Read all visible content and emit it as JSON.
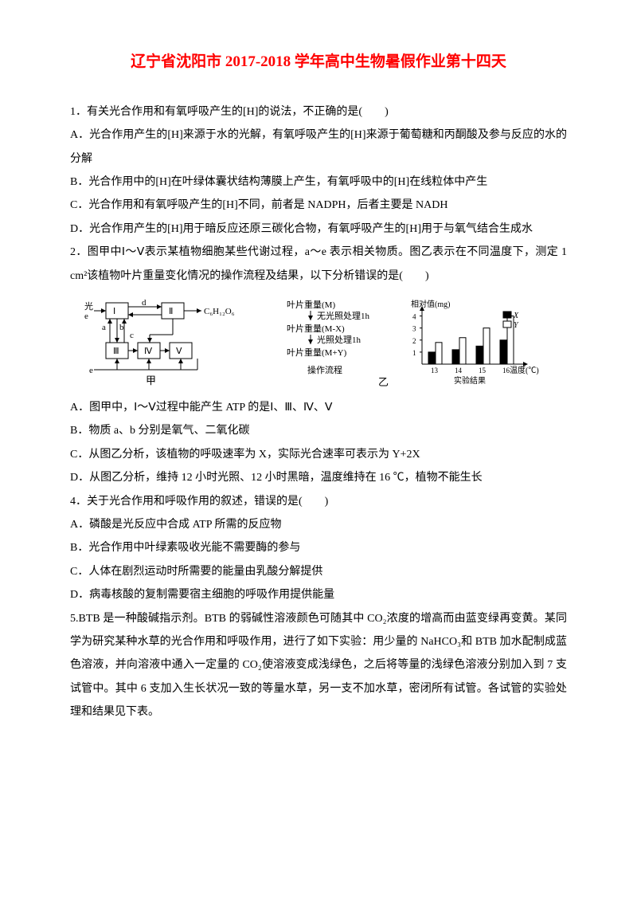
{
  "title": "辽宁省沈阳市 2017-2018 学年高中生物暑假作业第十四天",
  "questions": {
    "q1": {
      "stem": "1．有关光合作用和有氧呼吸产生的[H]的说法，不正确的是(　　)",
      "A": "A．光合作用产生的[H]来源于水的光解，有氧呼吸产生的[H]来源于葡萄糖和丙酮酸及参与反应的水的分解",
      "B": "B．光合作用中的[H]在叶绿体囊状结构薄膜上产生，有氧呼吸中的[H]在线粒体中产生",
      "C": "C．光合作用和有氧呼吸产生的[H]不同，前者是 NADPH，后者主要是 NADH",
      "D": "D．光合作用产生的[H]用于暗反应还原三碳化合物，有氧呼吸产生的[H]用于与氧气结合生成水"
    },
    "q2": {
      "stem": "2．图甲中Ⅰ～Ⅴ表示某植物细胞某些代谢过程，a～e 表示相关物质。图乙表示在不同温度下，测定 1 cm²该植物叶片重量变化情况的操作流程及结果，以下分析错误的是(　　)",
      "A": "A．图甲中，Ⅰ～Ⅴ过程中能产生 ATP 的是Ⅰ、Ⅲ、Ⅳ、Ⅴ",
      "B": "B．物质 a、b 分别是氧气、二氧化碳",
      "C": "C．从图乙分析，该植物的呼吸速率为 X，实际光合速率可表示为 Y+2X",
      "D": "D．从图乙分析，维持 12 小时光照、12 小时黑暗，温度维持在 16 ℃，植物不能生长"
    },
    "q4": {
      "stem": "4．关于光合作用和呼吸作用的叙述，错误的是(　　)",
      "A": "A．磷酸是光反应中合成 ATP 所需的反应物",
      "B": "B．光合作用中叶绿素吸收光能不需要酶的参与",
      "C": "C．人体在剧烈运动时所需要的能量由乳酸分解提供",
      "D": "D．病毒核酸的复制需要宿主细胞的呼吸作用提供能量"
    },
    "q5": {
      "text": "5.BTB 是一种酸碱指示剂。BTB 的弱碱性溶液颜色可随其中 CO₂浓度的增高而由蓝变绿再变黄。某同学为研究某种水草的光合作用和呼吸作用，进行了如下实验：用少量的 NaHCO₃和 BTB 加水配制成蓝色溶液，并向溶液中通入一定量的 CO₂使溶液变成浅绿色，之后将等量的浅绿色溶液分别加入到 7 支试管中。其中 6 支加入生长状况一致的等量水草，另一支不加水草，密闭所有试管。各试管的实验处理和结果见下表。"
    }
  },
  "diagram_left": {
    "light": "光",
    "e_top": "e",
    "glucose": "C₆H₁₂O₆",
    "boxes": [
      "Ⅰ",
      "Ⅱ",
      "Ⅲ",
      "Ⅳ",
      "Ⅴ"
    ],
    "labels": [
      "a",
      "b",
      "c",
      "d",
      "e"
    ],
    "caption": "甲"
  },
  "diagram_mid": {
    "l1": "叶片重量(M)",
    "l2a": "无光照处理1h",
    "l3": "叶片重量(M-X)",
    "l4a": "光照处理1h",
    "l5": "叶片重量(M+Y)",
    "caption": "操作流程",
    "yi": "乙"
  },
  "diagram_chart": {
    "ylabel": "相对值(mg)",
    "yticks": [
      "1",
      "2",
      "3",
      "4"
    ],
    "xlabel": "温度(℃)",
    "xticks": [
      "13",
      "14",
      "15",
      "16"
    ],
    "legend_x": "X",
    "legend_y": "Y",
    "caption": "实验结果",
    "bar_x": [
      1.0,
      1.2,
      1.5,
      2.0
    ],
    "bar_y": [
      1.8,
      2.2,
      3.0,
      4.0
    ],
    "color_x": "#000000",
    "color_y": "#ffffff",
    "axis_color": "#000000"
  }
}
